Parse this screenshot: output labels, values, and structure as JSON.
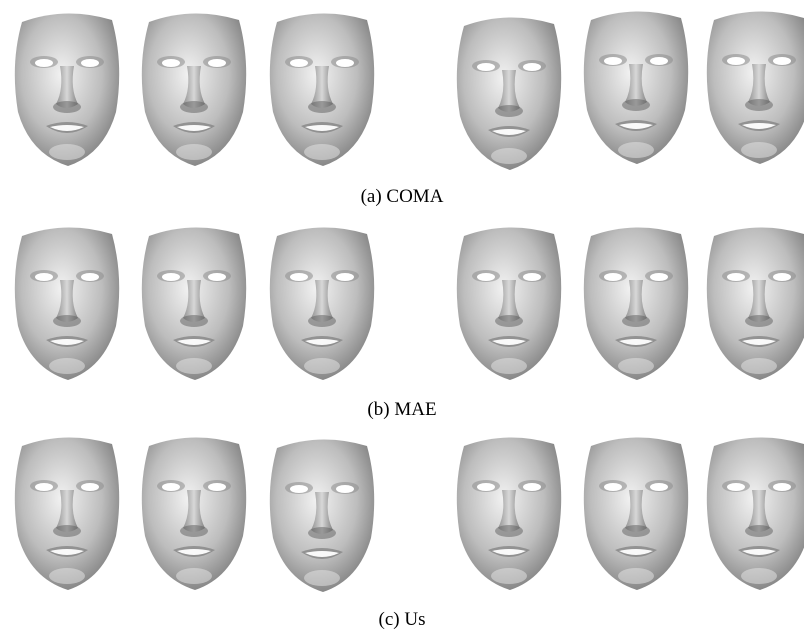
{
  "figure": {
    "panels": [
      {
        "id": "coma",
        "caption": "(a) COMA",
        "faces": [
          "mesh-face-1",
          "mesh-face-2",
          "mesh-face-3",
          "mesh-face-4",
          "mesh-face-5",
          "mesh-face-6"
        ]
      },
      {
        "id": "mae",
        "caption": "(b) MAE",
        "faces": [
          "mesh-face-1",
          "mesh-face-2",
          "mesh-face-3",
          "mesh-face-4",
          "mesh-face-5",
          "mesh-face-6"
        ]
      },
      {
        "id": "us",
        "caption": "(c) Us",
        "faces": [
          "mesh-face-1",
          "mesh-face-2",
          "mesh-face-3",
          "mesh-face-4",
          "mesh-face-5",
          "mesh-face-6"
        ]
      }
    ],
    "colors": {
      "mesh_light": "#f2f2f2",
      "mesh_mid": "#bdbdbd",
      "mesh_dark": "#6f6f6f",
      "background": "#ffffff"
    }
  }
}
